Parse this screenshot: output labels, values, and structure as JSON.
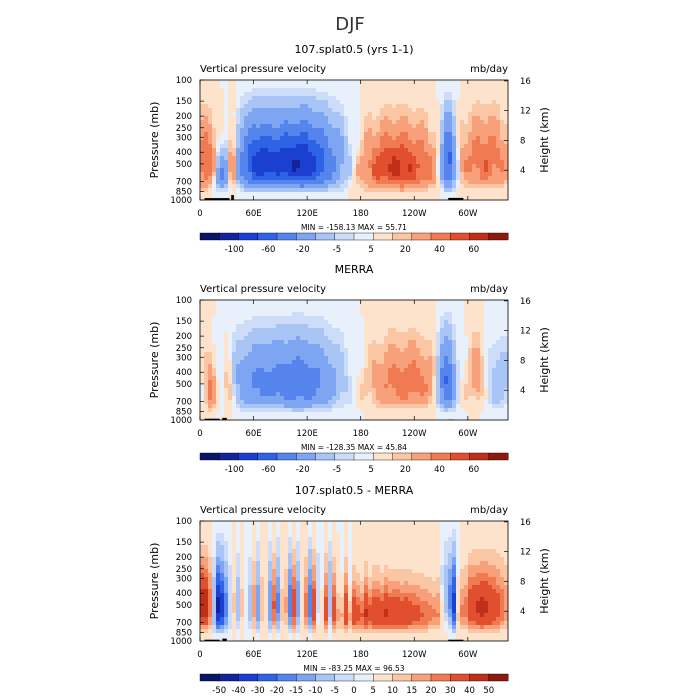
{
  "figure": {
    "title": "DJF"
  },
  "colors": {
    "palette": [
      "#0a1468",
      "#13239b",
      "#1b3fd0",
      "#2f63e6",
      "#5585ec",
      "#7ea5f1",
      "#a8c5f5",
      "#cddcf8",
      "#e7f0fb",
      "#fde2cc",
      "#fbc6a3",
      "#f7a07a",
      "#f07a52",
      "#e14f2e",
      "#c22f18",
      "#8c1a0c"
    ],
    "mask": "#000000",
    "frame": "#000000"
  },
  "chart_data": [
    {
      "type": "heatmap",
      "title": "107.splat0.5 (yrs 1-1)",
      "left_string": "Vertical pressure velocity",
      "right_string": "mb/day",
      "ylabel": "Pressure (mb)",
      "y2label": "Height (km)",
      "xlabel": "",
      "xlim": [
        0,
        345
      ],
      "ylim": [
        1000,
        100
      ],
      "x_ticks": [
        "0",
        "60E",
        "120E",
        "180",
        "120W",
        "60W"
      ],
      "y_ticks": [
        "100",
        "150",
        "200",
        "250",
        "300",
        "400",
        "500",
        "700",
        "850",
        "1000"
      ],
      "y2_ticks": [
        "16",
        "12",
        "8",
        "4"
      ],
      "stats": "MIN = -158.13   MAX =  55.71",
      "min": -158.13,
      "max": 55.71,
      "colorbar_labels": [
        "-100",
        "-60",
        "-20",
        "-5",
        "5",
        "20",
        "40",
        "60"
      ]
    },
    {
      "type": "heatmap",
      "title": "MERRA",
      "left_string": "Vertical pressure velocity",
      "right_string": "mb/day",
      "ylabel": "Pressure (mb)",
      "y2label": "Height (km)",
      "xlabel": "",
      "xlim": [
        0,
        345
      ],
      "ylim": [
        1000,
        100
      ],
      "x_ticks": [
        "0",
        "60E",
        "120E",
        "180",
        "120W",
        "60W"
      ],
      "y_ticks": [
        "100",
        "150",
        "200",
        "250",
        "300",
        "400",
        "500",
        "700",
        "850",
        "1000"
      ],
      "y2_ticks": [
        "16",
        "12",
        "8",
        "4"
      ],
      "stats": "MIN = -128.35   MAX =  45.84",
      "min": -128.35,
      "max": 45.84,
      "colorbar_labels": [
        "-100",
        "-60",
        "-20",
        "-5",
        "5",
        "20",
        "40",
        "60"
      ]
    },
    {
      "type": "heatmap",
      "title": "107.splat0.5 - MERRA",
      "left_string": "Vertical pressure velocity",
      "right_string": "mb/day",
      "ylabel": "Pressure (mb)",
      "y2label": "Height (km)",
      "xlabel": "",
      "xlim": [
        0,
        345
      ],
      "ylim": [
        1000,
        100
      ],
      "x_ticks": [
        "0",
        "60E",
        "120E",
        "180",
        "120W",
        "60W"
      ],
      "y_ticks": [
        "100",
        "150",
        "200",
        "250",
        "300",
        "400",
        "500",
        "700",
        "850",
        "1000"
      ],
      "y2_ticks": [
        "16",
        "12",
        "8",
        "4"
      ],
      "stats": "MIN = -83.25   MAX =  96.53",
      "min": -83.25,
      "max": 96.53,
      "colorbar_labels": [
        "-50",
        "-40",
        "-30",
        "-20",
        "-15",
        "-10",
        "-5",
        "0",
        "5",
        "10",
        "15",
        "20",
        "30",
        "40",
        "50"
      ]
    }
  ]
}
